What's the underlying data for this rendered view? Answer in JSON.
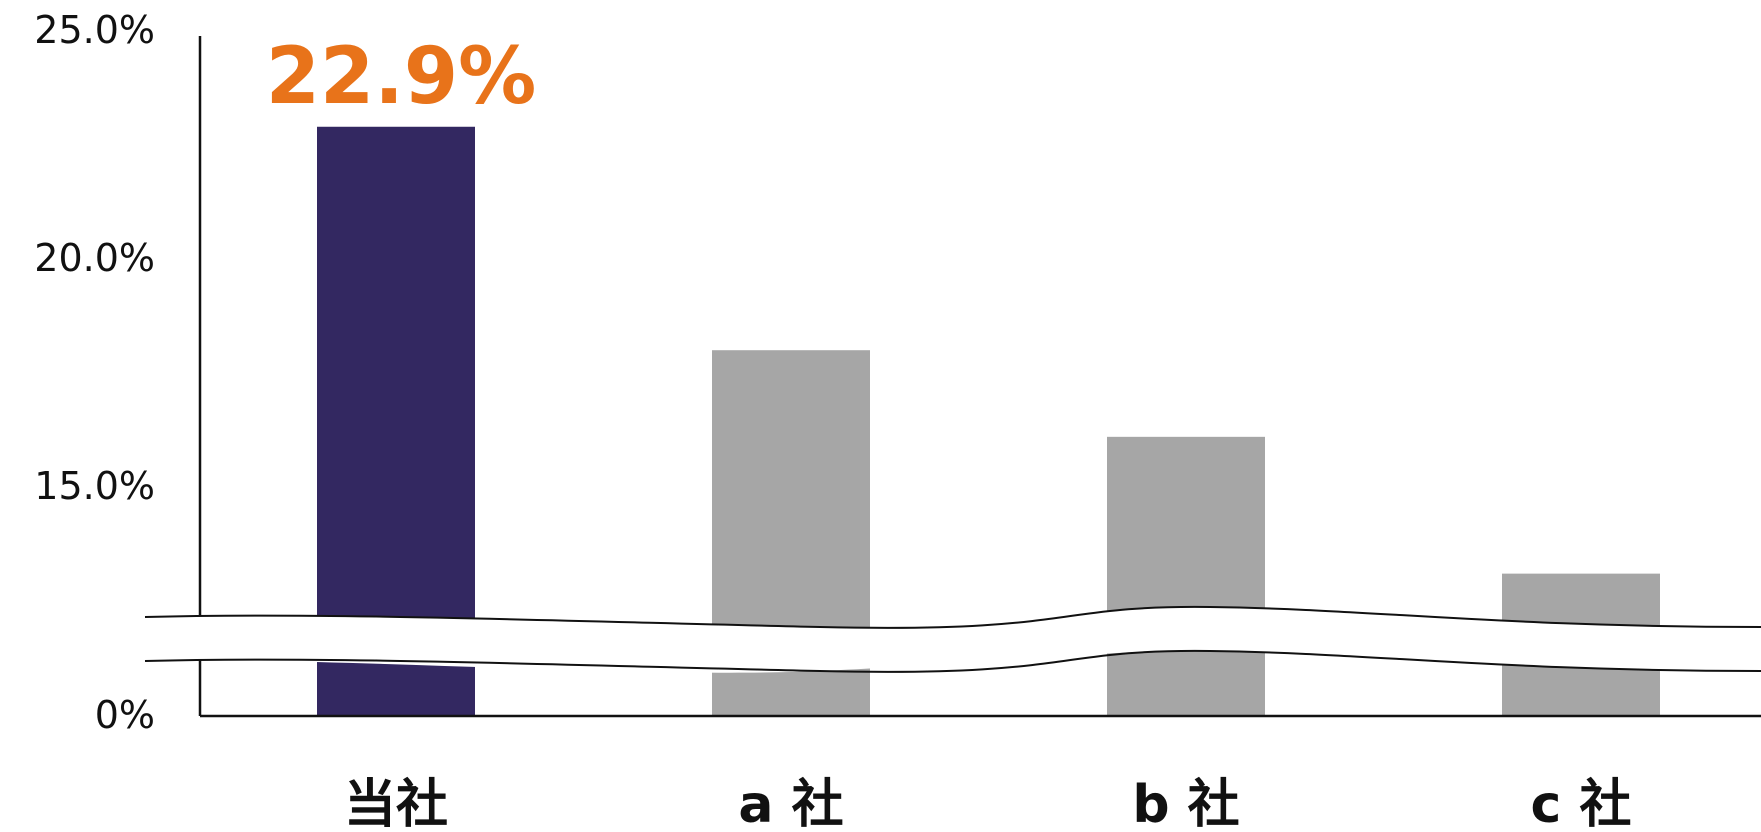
{
  "chart_data": {
    "type": "bar",
    "categories": [
      "当社",
      "a 社",
      "b 社",
      "c 社"
    ],
    "values": [
      22.9,
      18.0,
      16.1,
      13.1
    ],
    "unit": "%",
    "y_ticks": [
      {
        "value": 0,
        "label": "0%"
      },
      {
        "value": 15,
        "label": "15.0%"
      },
      {
        "value": 20,
        "label": "20.0%"
      },
      {
        "value": 25,
        "label": "25.0%"
      }
    ],
    "ylim": [
      0,
      25
    ],
    "axis_break": true,
    "highlight_index": 0,
    "data_labels": [
      {
        "index": 0,
        "text": "22.9%"
      }
    ],
    "colors": {
      "highlight_bar": "#332861",
      "other_bar": "#a6a6a6",
      "highlight_label": "#e8731a",
      "axis": "#111111"
    },
    "title": "",
    "xlabel": "",
    "ylabel": "",
    "grid": false,
    "legend": "none"
  }
}
